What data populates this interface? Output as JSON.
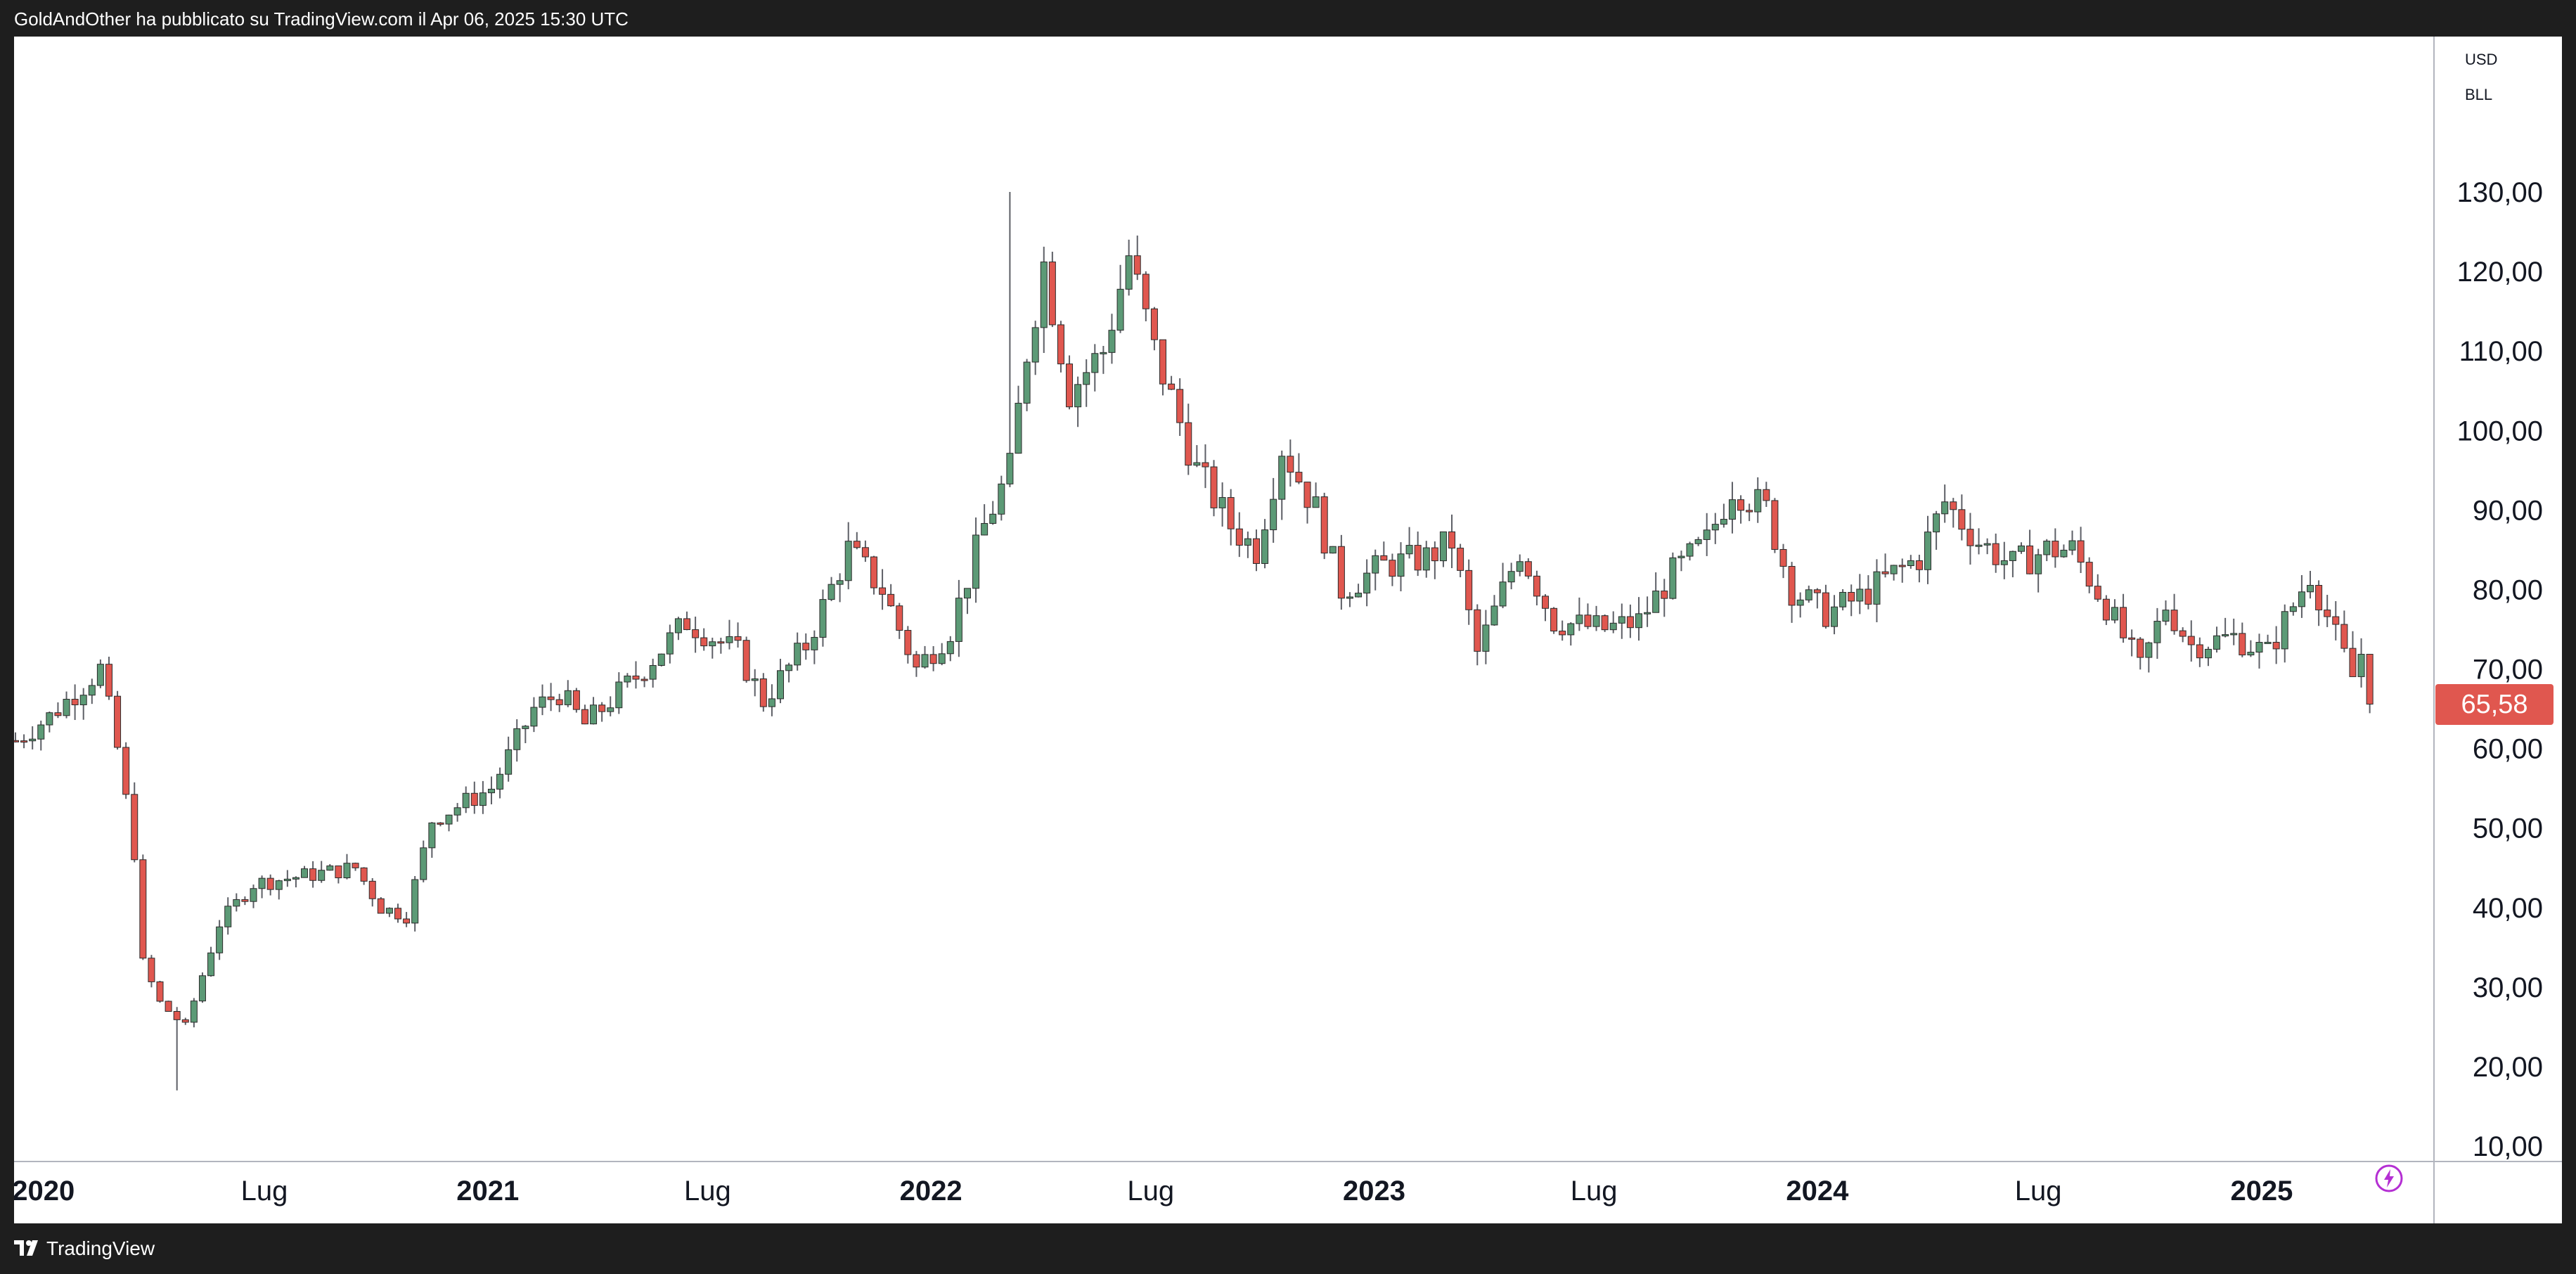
{
  "header": {
    "published_by": "GoldAndOther ha pubblicato su TradingView.com il Apr 06, 2025 15:30 UTC"
  },
  "footer": {
    "brand": "TradingView"
  },
  "colors": {
    "up": "#5c9a76",
    "down": "#e0574f",
    "wick": "#5d5f66",
    "grid": "#ffffff",
    "axis_text": "#131722",
    "badge": "#e0574f"
  },
  "icons": {
    "brand_logo": "tradingview-logo-icon",
    "replay": "lightning-icon"
  },
  "chart_data": {
    "type": "candlestick",
    "interval": "1W",
    "currency": "USD",
    "symbol": "BLL",
    "last_price_label": "65,58",
    "y_axis": {
      "min": 10,
      "max": 140,
      "ticks": [
        10,
        20,
        30,
        40,
        50,
        60,
        70,
        80,
        90,
        100,
        110,
        120,
        130
      ],
      "tick_labels": [
        "10,00",
        "20,00",
        "30,00",
        "40,00",
        "50,00",
        "60,00",
        "70,00",
        "80,00",
        "90,00",
        "100,00",
        "110,00",
        "120,00",
        "130,00"
      ]
    },
    "x_axis": {
      "start": "2019-12-09",
      "end": "2025-04-06",
      "ticks": [
        {
          "date": "2020-01-01",
          "label": "2020",
          "bold": true
        },
        {
          "date": "2020-07-01",
          "label": "Lug",
          "bold": false
        },
        {
          "date": "2021-01-01",
          "label": "2021",
          "bold": true
        },
        {
          "date": "2021-07-01",
          "label": "Lug",
          "bold": false
        },
        {
          "date": "2022-01-01",
          "label": "2022",
          "bold": true
        },
        {
          "date": "2022-07-01",
          "label": "Lug",
          "bold": false
        },
        {
          "date": "2023-01-01",
          "label": "2023",
          "bold": true
        },
        {
          "date": "2023-07-01",
          "label": "Lug",
          "bold": false
        },
        {
          "date": "2024-01-01",
          "label": "2024",
          "bold": true
        },
        {
          "date": "2024-07-01",
          "label": "Lug",
          "bold": false
        },
        {
          "date": "2025-01-01",
          "label": "2025",
          "bold": true
        }
      ]
    },
    "anchors": [
      [
        "2019-12-09",
        61
      ],
      [
        "2020-01-06",
        64
      ],
      [
        "2020-02-03",
        68
      ],
      [
        "2020-02-17",
        70
      ],
      [
        "2020-03-02",
        60
      ],
      [
        "2020-03-16",
        47
      ],
      [
        "2020-03-23",
        33
      ],
      [
        "2020-04-06",
        28
      ],
      [
        "2020-04-27",
        25
      ],
      [
        "2020-05-25",
        38
      ],
      [
        "2020-06-22",
        43
      ],
      [
        "2020-08-03",
        44
      ],
      [
        "2020-09-14",
        45
      ],
      [
        "2020-10-05",
        40
      ],
      [
        "2020-10-26",
        39
      ],
      [
        "2020-11-16",
        51
      ],
      [
        "2021-01-04",
        55
      ],
      [
        "2021-02-08",
        65
      ],
      [
        "2021-03-01",
        67
      ],
      [
        "2021-03-22",
        63
      ],
      [
        "2021-05-03",
        69
      ],
      [
        "2021-06-14",
        76
      ],
      [
        "2021-07-26",
        72
      ],
      [
        "2021-08-16",
        66
      ],
      [
        "2021-09-20",
        73
      ],
      [
        "2021-10-25",
        85
      ],
      [
        "2021-11-22",
        80
      ],
      [
        "2021-12-20",
        70
      ],
      [
        "2022-01-17",
        75
      ],
      [
        "2022-02-14",
        88
      ],
      [
        "2022-03-07",
        95
      ],
      [
        "2022-03-21",
        110
      ],
      [
        "2022-04-04",
        121
      ],
      [
        "2022-04-25",
        105
      ],
      [
        "2022-05-23",
        110
      ],
      [
        "2022-06-13",
        122
      ],
      [
        "2022-07-04",
        110
      ],
      [
        "2022-08-08",
        95
      ],
      [
        "2022-09-05",
        88
      ],
      [
        "2022-09-26",
        85
      ],
      [
        "2022-10-17",
        98
      ],
      [
        "2022-11-14",
        90
      ],
      [
        "2022-12-05",
        80
      ],
      [
        "2023-01-09",
        83
      ],
      [
        "2023-02-13",
        84
      ],
      [
        "2023-03-06",
        86
      ],
      [
        "2023-03-27",
        72
      ],
      [
        "2023-05-01",
        85
      ],
      [
        "2023-05-29",
        76
      ],
      [
        "2023-07-10",
        75
      ],
      [
        "2023-08-07",
        76
      ],
      [
        "2023-09-04",
        82
      ],
      [
        "2023-10-02",
        86
      ],
      [
        "2023-10-23",
        93
      ],
      [
        "2023-11-20",
        90
      ],
      [
        "2023-12-11",
        80
      ],
      [
        "2024-01-08",
        77
      ],
      [
        "2024-02-05",
        79
      ],
      [
        "2024-03-04",
        82
      ],
      [
        "2024-03-25",
        84
      ],
      [
        "2024-04-15",
        91
      ],
      [
        "2024-05-13",
        86
      ],
      [
        "2024-06-10",
        83
      ],
      [
        "2024-07-08",
        85
      ],
      [
        "2024-07-29",
        85
      ],
      [
        "2024-08-26",
        78
      ],
      [
        "2024-09-23",
        70
      ],
      [
        "2024-10-14",
        78
      ],
      [
        "2024-11-04",
        73
      ],
      [
        "2024-12-09",
        74
      ],
      [
        "2025-01-06",
        72
      ],
      [
        "2025-02-10",
        82
      ],
      [
        "2025-03-03",
        74
      ],
      [
        "2025-03-17",
        69
      ],
      [
        "2025-03-24",
        72
      ],
      [
        "2025-04-06",
        65.58
      ]
    ],
    "wick_spikes": [
      {
        "date": "2022-03-07",
        "high": 130
      },
      {
        "date": "2022-06-13",
        "high": 124
      },
      {
        "date": "2020-04-20",
        "low": 17
      }
    ]
  }
}
